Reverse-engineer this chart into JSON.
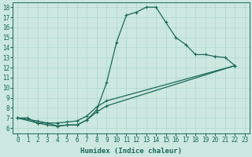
{
  "xlabel": "Humidex (Indice chaleur)",
  "xlim": [
    -0.5,
    23.5
  ],
  "ylim": [
    5.5,
    18.5
  ],
  "xticks": [
    0,
    1,
    2,
    3,
    4,
    5,
    6,
    7,
    8,
    9,
    10,
    11,
    12,
    13,
    14,
    15,
    16,
    17,
    18,
    19,
    20,
    21,
    22,
    23
  ],
  "yticks": [
    6,
    7,
    8,
    9,
    10,
    11,
    12,
    13,
    14,
    15,
    16,
    17,
    18
  ],
  "bg_color": "#cce8e0",
  "grid_color": "#b0d8ce",
  "line_color": "#1a6858",
  "line1_x": [
    0,
    1,
    2,
    3,
    4,
    5,
    6,
    7,
    8,
    9,
    10,
    11,
    12,
    13,
    14,
    15,
    16,
    17,
    18,
    19,
    20,
    21,
    22
  ],
  "line1_y": [
    7.0,
    7.0,
    6.5,
    6.5,
    6.2,
    6.3,
    6.3,
    6.8,
    7.8,
    10.5,
    14.5,
    17.2,
    17.5,
    18.0,
    18.0,
    16.5,
    15.0,
    14.3,
    13.3,
    13.3,
    13.1,
    13.0,
    12.2
  ],
  "line2_x": [
    0,
    2,
    3,
    4,
    5,
    6,
    7,
    8,
    9,
    22
  ],
  "line2_y": [
    7.0,
    6.5,
    6.3,
    6.2,
    6.3,
    6.3,
    6.8,
    7.6,
    8.2,
    12.2
  ],
  "line3_x": [
    0,
    2,
    3,
    4,
    5,
    6,
    7,
    8,
    9,
    22
  ],
  "line3_y": [
    7.0,
    6.7,
    6.5,
    6.5,
    6.6,
    6.7,
    7.2,
    8.1,
    8.7,
    12.2
  ],
  "marker_size": 2.5,
  "line_width": 0.9,
  "tick_fontsize": 5.5,
  "xlabel_fontsize": 6.5
}
